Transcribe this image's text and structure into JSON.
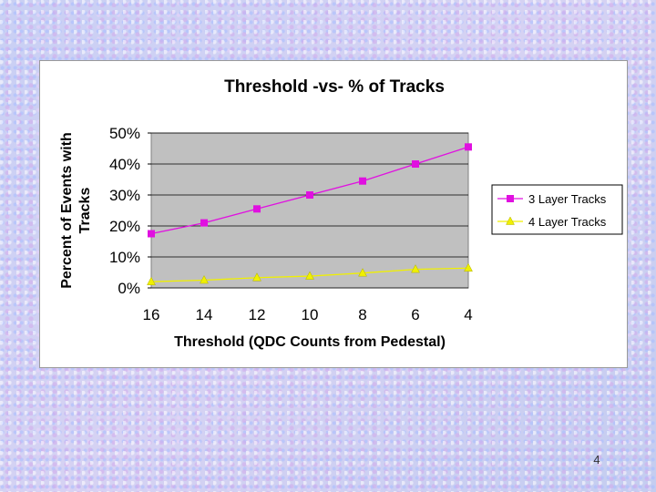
{
  "slide": {
    "page_number": "4"
  },
  "chart_data": {
    "type": "line",
    "title": "Threshold -vs- % of Tracks",
    "xlabel": "Threshold (QDC Counts from Pedestal)",
    "ylabel_lines": [
      "Percent of Events with",
      "Tracks"
    ],
    "categories": [
      "16",
      "14",
      "12",
      "10",
      "8",
      "6",
      "4"
    ],
    "ylim": [
      0,
      50
    ],
    "yticks": [
      0,
      10,
      20,
      30,
      40,
      50
    ],
    "ytick_labels": [
      "0%",
      "10%",
      "20%",
      "30%",
      "40%",
      "50%"
    ],
    "grid": true,
    "legend_position": "right",
    "plot_background": "#c0c0c0",
    "series": [
      {
        "name": "3 Layer Tracks",
        "values": [
          17.5,
          21,
          25.5,
          30,
          34.5,
          40,
          45.5
        ],
        "color": "#e010e0",
        "marker": "square"
      },
      {
        "name": "4 Layer Tracks",
        "values": [
          2,
          2.5,
          3.3,
          3.8,
          4.8,
          6,
          6.4
        ],
        "color": "#f0f000",
        "marker": "triangle"
      }
    ]
  }
}
